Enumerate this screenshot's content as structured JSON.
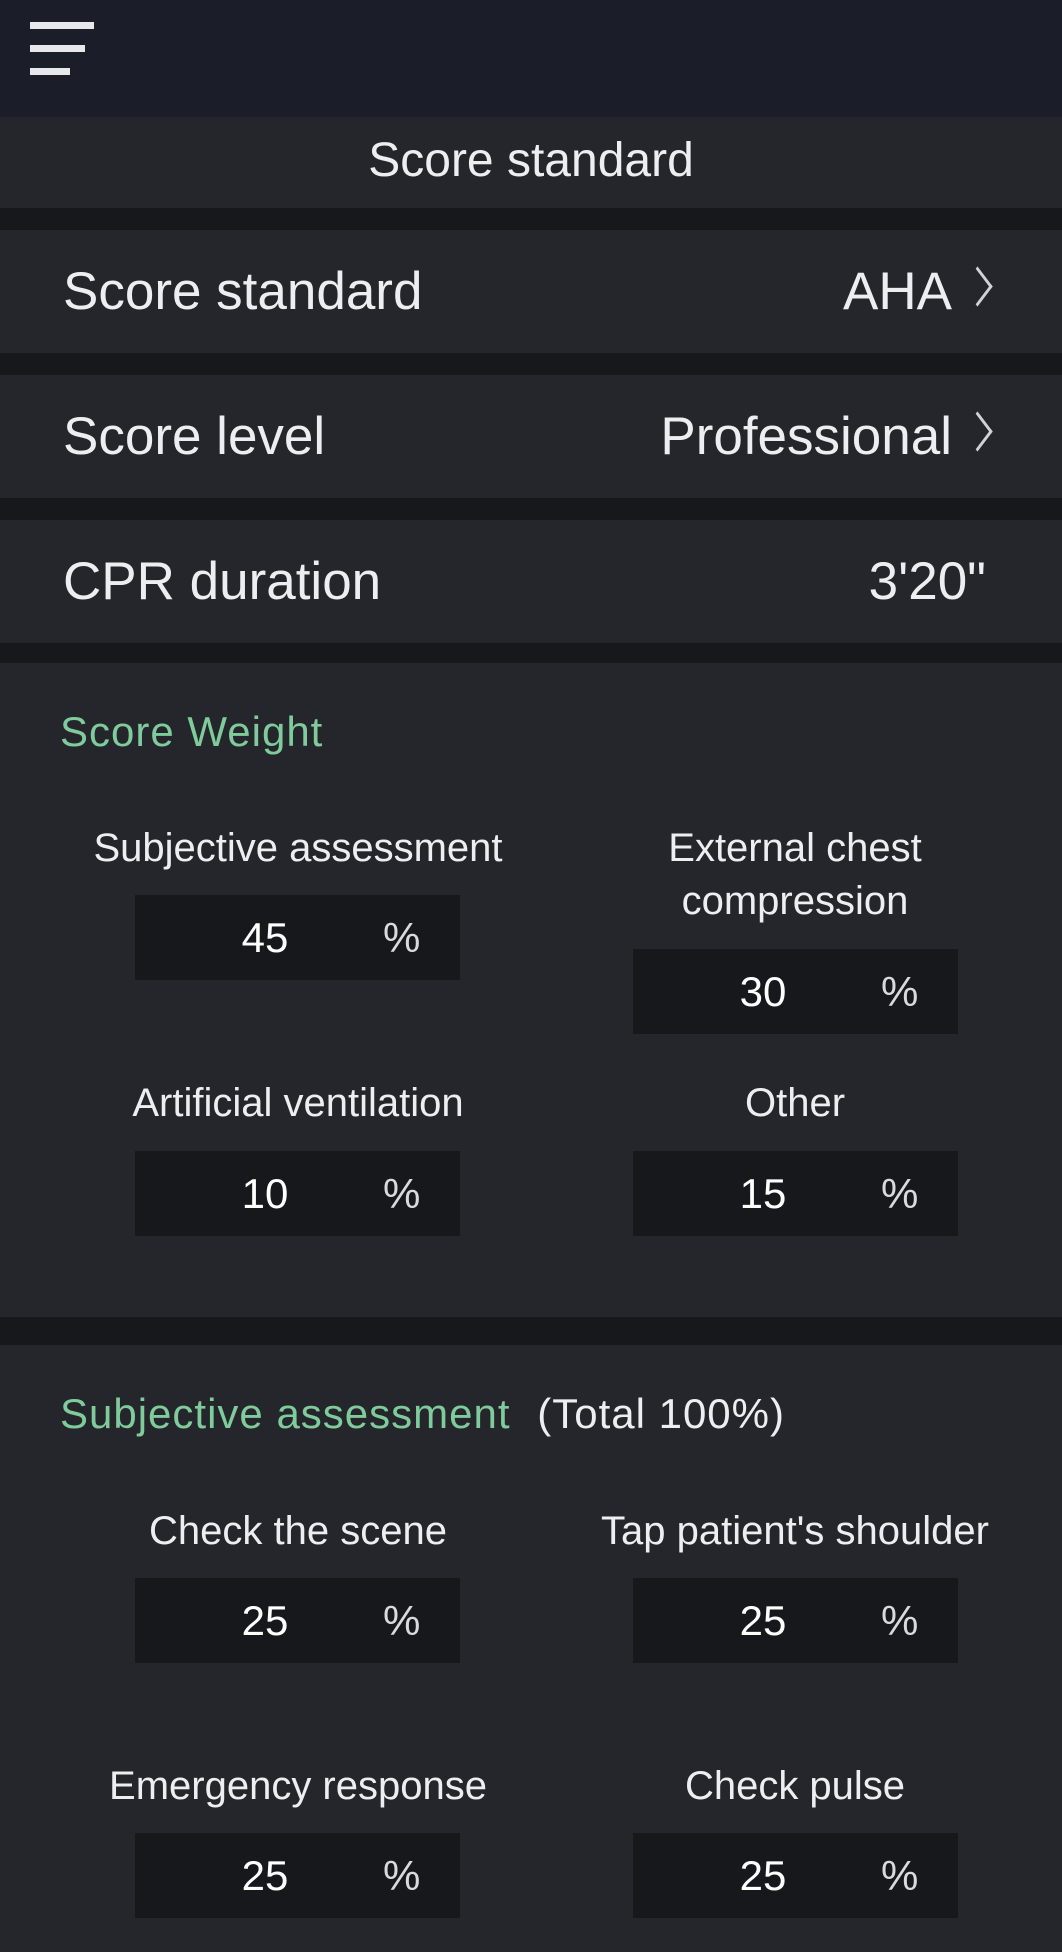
{
  "header": {
    "menu_icon": "hamburger-menu-icon"
  },
  "title": "Score standard",
  "settings": [
    {
      "label": "Score standard",
      "value": "AHA",
      "chevron": true
    },
    {
      "label": "Score level",
      "value": "Professional",
      "chevron": true
    },
    {
      "label": "CPR duration",
      "value": "3'20\"",
      "chevron": false
    }
  ],
  "score_weight": {
    "heading": "Score Weight",
    "fields": [
      {
        "label": "Subjective assessment",
        "value": "45",
        "unit": "%"
      },
      {
        "label": "External chest compression",
        "value": "30",
        "unit": "%"
      },
      {
        "label": "Artificial ventilation",
        "value": "10",
        "unit": "%"
      },
      {
        "label": "Other",
        "value": "15",
        "unit": "%"
      }
    ]
  },
  "subjective": {
    "heading": "Subjective assessment",
    "note": "(Total 100%)",
    "fields": [
      {
        "label": "Check the scene",
        "value": "25",
        "unit": "%"
      },
      {
        "label": "Tap patient's shoulder",
        "value": "25",
        "unit": "%"
      },
      {
        "label": "Emergency response",
        "value": "25",
        "unit": "%"
      },
      {
        "label": "Check pulse",
        "value": "25",
        "unit": "%"
      }
    ]
  },
  "colors": {
    "accent": "#7fcb9b",
    "panel": "#25262b",
    "topbar": "#1b1e28",
    "input_bg": "#17181c"
  }
}
